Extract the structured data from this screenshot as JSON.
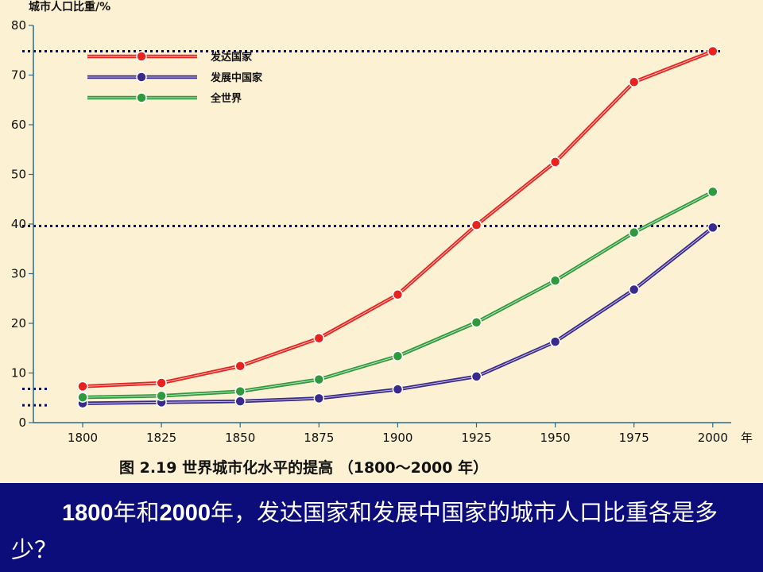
{
  "chart_data": {
    "type": "line",
    "title": "",
    "ylabel": "城市人口比重/%",
    "xunit": "年",
    "caption": "图 2.19   世界城市化水平的提高 （1800～2000 年）",
    "categories": [
      "1800",
      "1825",
      "1850",
      "1875",
      "1900",
      "1925",
      "1950",
      "1975",
      "2000"
    ],
    "x": [
      1800,
      1825,
      1850,
      1875,
      1900,
      1925,
      1950,
      1975,
      2000
    ],
    "yticks": [
      "0",
      "10",
      "20",
      "30",
      "40",
      "50",
      "60",
      "70",
      "80"
    ],
    "ylim": [
      0,
      80
    ],
    "series": [
      {
        "name": "发达国家",
        "color": "#e8221c",
        "values": [
          7.3,
          8.0,
          11.4,
          17.0,
          25.8,
          39.8,
          52.5,
          68.6,
          74.8
        ]
      },
      {
        "name": "发展中国家",
        "color": "#3a2a8c",
        "values": [
          3.9,
          4.1,
          4.3,
          4.9,
          6.7,
          9.3,
          16.3,
          26.8,
          39.3
        ]
      },
      {
        "name": "全世界",
        "color": "#2e9a3c",
        "values": [
          5.1,
          5.4,
          6.3,
          8.7,
          13.4,
          20.2,
          28.6,
          38.3,
          46.5
        ]
      }
    ],
    "reference_lines": [
      74.8,
      39.6,
      6.8,
      3.5
    ],
    "legend_position": "top-left"
  },
  "question": {
    "year1": "1800",
    "part1": "年和",
    "year2": "2000",
    "part2": "年，发达国家和发展中国家的城市人口比重各是多少？"
  },
  "colors": {
    "panel_bg": "#fdf1d3",
    "question_bg": "#0c0c7a",
    "dotted_line": "#0a0a6e"
  }
}
